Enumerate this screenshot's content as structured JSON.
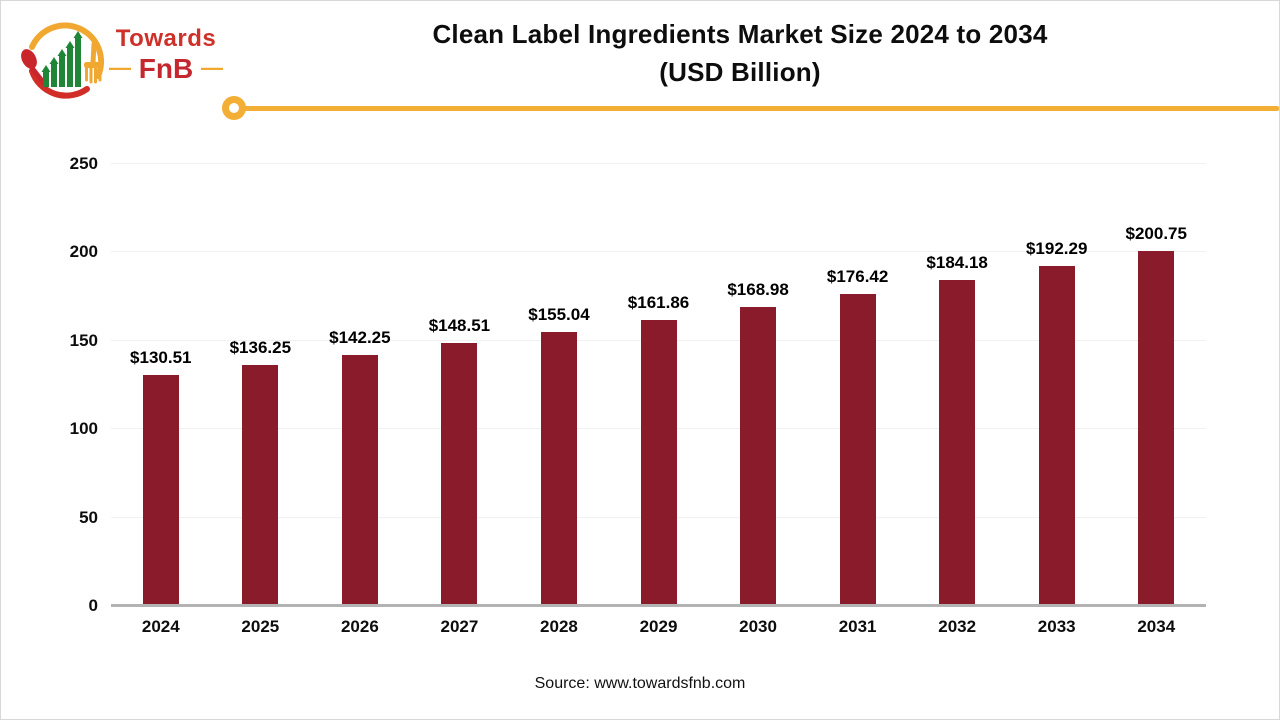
{
  "brand": {
    "name_top": "Towards",
    "name_bottom": "FnB",
    "dash_left": "—",
    "dash_right": "—"
  },
  "header": {
    "title_line1": "Clean Label Ingredients Market Size 2024 to 2034",
    "title_line2": "(USD Billion)"
  },
  "chart_data": {
    "type": "bar",
    "title": "Clean Label Ingredients Market Size 2024 to 2034 (USD Billion)",
    "categories": [
      "2024",
      "2025",
      "2026",
      "2027",
      "2028",
      "2029",
      "2030",
      "2031",
      "2032",
      "2033",
      "2034"
    ],
    "values": [
      130.51,
      136.25,
      142.25,
      148.51,
      155.04,
      161.86,
      168.98,
      176.42,
      184.18,
      192.29,
      200.75
    ],
    "value_labels": [
      "$130.51",
      "$136.25",
      "$142.25",
      "$148.51",
      "$155.04",
      "$161.86",
      "$168.98",
      "$176.42",
      "$184.18",
      "$192.29",
      "$200.75"
    ],
    "xlabel": "",
    "ylabel": "",
    "ylim": [
      0,
      250
    ],
    "yticks": [
      0,
      50,
      100,
      150,
      200,
      250
    ],
    "grid": true,
    "legend_position": "none",
    "bar_color": "#8a1b2b"
  },
  "footer": {
    "source": "Source: www.towardsfnb.com"
  },
  "colors": {
    "bar": "#8a1b2b",
    "accent_yellow": "#f3ae35",
    "logo_red": "#c9262c",
    "logo_green": "#208637",
    "logo_yellow": "#f0a830",
    "gridline": "#f1f1f1",
    "axis_line": "#b3b3b3"
  }
}
